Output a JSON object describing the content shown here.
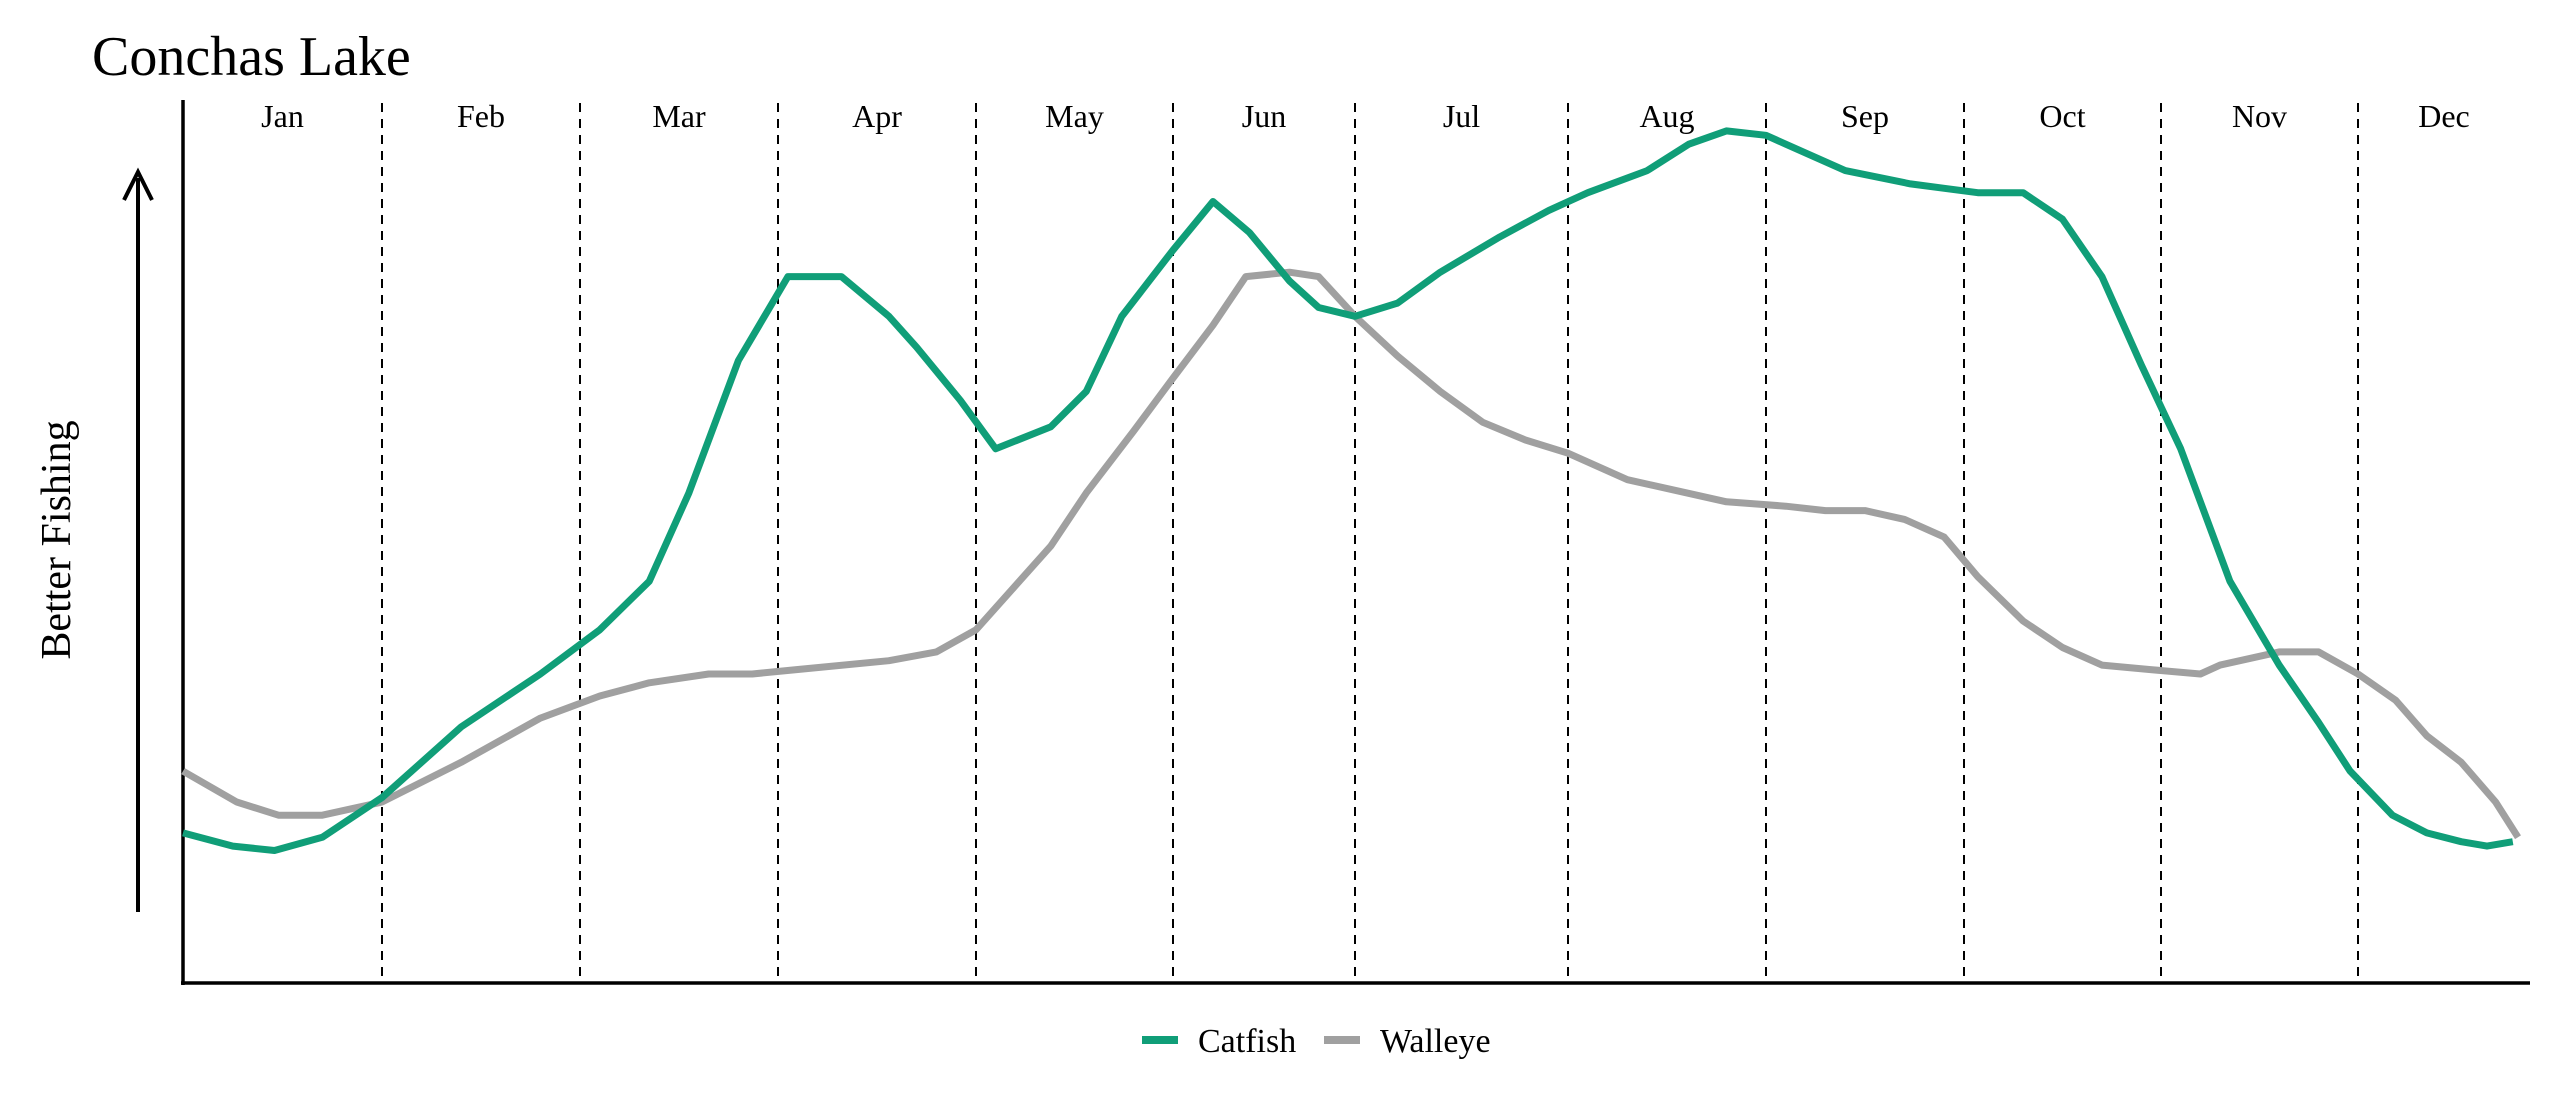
{
  "chart_data": {
    "type": "line",
    "title": "Conchas Lake",
    "ylabel": "Better Fishing",
    "xlabel": "",
    "months": [
      "Jan",
      "Feb",
      "Mar",
      "Apr",
      "May",
      "Jun",
      "Jul",
      "Aug",
      "Sep",
      "Oct",
      "Nov",
      "Dec"
    ],
    "x_range": [
      0,
      12
    ],
    "ylim": [
      0,
      100
    ],
    "month_dividers": "dashed",
    "y_ticks": "none",
    "legend_position": "bottom-center",
    "series": [
      {
        "name": "Catfish",
        "color": "#109e78",
        "x": [
          0.0,
          0.25,
          0.46,
          0.7,
          1.0,
          1.4,
          1.8,
          2.1,
          2.35,
          2.55,
          2.8,
          3.05,
          3.32,
          3.56,
          3.7,
          3.92,
          4.1,
          4.38,
          4.56,
          4.74,
          5.0,
          5.22,
          5.42,
          5.64,
          5.8,
          6.0,
          6.2,
          6.4,
          6.68,
          6.91,
          7.1,
          7.4,
          7.61,
          7.8,
          8.0,
          8.1,
          8.4,
          8.73,
          8.9,
          9.07,
          9.3,
          9.5,
          9.7,
          9.9,
          10.1,
          10.35,
          10.6,
          10.8,
          10.96,
          11.2,
          11.4,
          11.6,
          11.75,
          11.9
        ],
        "y": [
          17,
          15.5,
          15,
          16.5,
          21,
          29,
          35,
          40,
          45.5,
          55.5,
          70.5,
          80,
          80,
          75.5,
          72,
          66,
          60.5,
          63,
          67,
          75.5,
          83,
          88.5,
          85,
          79.5,
          76.5,
          75.5,
          77,
          80.5,
          84.5,
          87.5,
          89.5,
          92,
          95,
          96.5,
          96,
          95,
          92,
          90.5,
          90,
          89.5,
          89.5,
          86.5,
          80,
          70,
          60.5,
          45.5,
          36,
          29.5,
          24,
          19,
          17,
          16,
          15.5,
          16
        ]
      },
      {
        "name": "Walleye",
        "color": "#a0a0a0",
        "x": [
          0.0,
          0.27,
          0.48,
          0.7,
          1.0,
          1.4,
          1.8,
          2.1,
          2.35,
          2.65,
          2.87,
          3.1,
          3.56,
          3.8,
          4.0,
          4.18,
          4.38,
          4.56,
          4.8,
          5.0,
          5.22,
          5.4,
          5.64,
          5.8,
          6.0,
          6.2,
          6.4,
          6.6,
          6.8,
          7.0,
          7.3,
          7.6,
          7.8,
          8.1,
          8.3,
          8.5,
          8.7,
          8.9,
          9.07,
          9.3,
          9.5,
          9.7,
          9.94,
          10.2,
          10.3,
          10.6,
          10.8,
          11.0,
          11.22,
          11.4,
          11.6,
          11.8,
          11.93
        ],
        "y": [
          24,
          20.5,
          19,
          19,
          20.5,
          25,
          30,
          32.5,
          34,
          35,
          35,
          35.5,
          36.5,
          37.5,
          40,
          44.5,
          49.5,
          55.5,
          62.5,
          68.5,
          74.5,
          80,
          80.5,
          80,
          75.5,
          71,
          67,
          63.5,
          61.5,
          60,
          57,
          55.5,
          54.5,
          54,
          53.5,
          53.5,
          52.5,
          50.5,
          46,
          41,
          38,
          36,
          35.5,
          35,
          36,
          37.5,
          37.5,
          35,
          32,
          28,
          25,
          20.5,
          16.5
        ]
      }
    ]
  }
}
